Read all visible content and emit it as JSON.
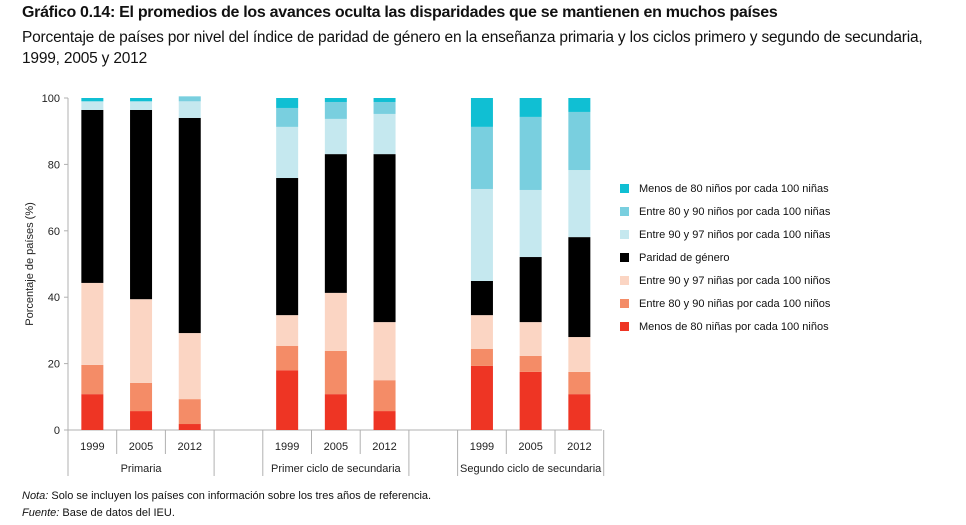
{
  "title": "Gráfico 0.14: El promedios de los avances oculta las disparidades que se mantienen en muchos países",
  "subtitle": "Porcentaje de países por nivel del índice de paridad de género en la enseñanza primaria y los ciclos primero y segundo de secundaria, 1999, 2005 y 2012",
  "notes": {
    "nota_label": "Nota:",
    "nota_text": " Solo se incluyen los países con información sobre los tres años de referencia.",
    "fuente_label": "Fuente:",
    "fuente_text": " Base de datos del IEU."
  },
  "chart_data": {
    "type": "bar",
    "stacked": true,
    "title": "Gráfico 0.14: El promedios de los avances oculta las disparidades que se mantienen en muchos países",
    "ylabel": "Porcentaje de países (%)",
    "xlabel": "",
    "ylim": [
      0,
      100
    ],
    "yticks": [
      0,
      20,
      40,
      60,
      80,
      100
    ],
    "grid": false,
    "legend_position": "right",
    "groups": [
      {
        "name": "Primaria",
        "categories": [
          "1999",
          "2005",
          "2012"
        ]
      },
      {
        "name": "Primer ciclo de secundaria",
        "categories": [
          "1999",
          "2005",
          "2012"
        ]
      },
      {
        "name": "Segundo ciclo de secundaria",
        "categories": [
          "1999",
          "2005",
          "2012"
        ]
      }
    ],
    "categories": [
      "Primaria 1999",
      "Primaria 2005",
      "Primaria 2012",
      "Primer ciclo 1999",
      "Primer ciclo 2005",
      "Primer ciclo 2012",
      "Segundo ciclo 1999",
      "Segundo ciclo 2005",
      "Segundo ciclo 2012"
    ],
    "series": [
      {
        "name": "Menos de 80 niñas por cada 100 niños",
        "color": "#ee3524",
        "values": [
          10.8,
          5.7,
          1.8,
          18.0,
          10.8,
          5.7,
          19.3,
          17.5,
          10.8
        ]
      },
      {
        "name": "Entre 80 y 90 niñas por cada 100 niños",
        "color": "#f48c67",
        "values": [
          8.8,
          8.5,
          7.5,
          7.3,
          13.0,
          9.3,
          5.1,
          4.8,
          6.7
        ]
      },
      {
        "name": "Entre 90 y 97 niñas por cada 100 niños",
        "color": "#fbd5c3",
        "values": [
          24.7,
          25.2,
          19.9,
          9.3,
          17.5,
          17.5,
          10.2,
          10.2,
          10.5
        ]
      },
      {
        "name": "Paridad de género",
        "color": "#000000",
        "values": [
          52.1,
          57.0,
          64.8,
          41.3,
          41.8,
          50.6,
          10.3,
          19.6,
          30.1
        ]
      },
      {
        "name": "Entre 90 y 97 niños por cada 100 niñas",
        "color": "#c5e8ef",
        "values": [
          2.6,
          2.6,
          5.0,
          15.4,
          10.6,
          12.1,
          27.7,
          20.2,
          20.2
        ]
      },
      {
        "name": "Entre 80 y 90 niños por cada 100 niñas",
        "color": "#79cfdf",
        "values": [
          0.0,
          0.0,
          1.5,
          5.7,
          5.1,
          3.6,
          18.7,
          22.0,
          17.5
        ]
      },
      {
        "name": "Menos de 80 niños por cada 100 niñas",
        "color": "#10bfd3",
        "values": [
          1.0,
          1.0,
          0.0,
          3.0,
          1.2,
          1.2,
          8.7,
          5.7,
          4.2
        ]
      }
    ]
  }
}
